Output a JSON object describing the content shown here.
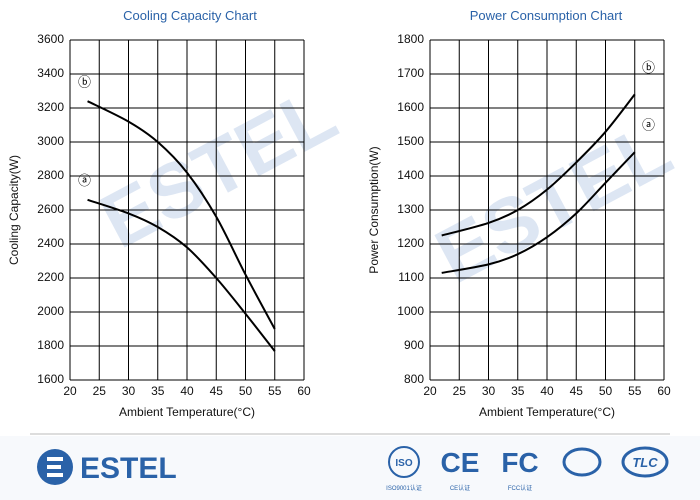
{
  "chart_data": [
    {
      "type": "line",
      "title": "Cooling Capacity Chart",
      "x_label": "Ambient Temperature(°C)",
      "y_label": "Cooling Capacity(W)",
      "x": [
        23,
        30,
        35,
        40,
        45,
        50,
        55
      ],
      "series": [
        {
          "name": "ⓑ",
          "color": "#000000",
          "values": [
            3240,
            3120,
            3000,
            2820,
            2560,
            2220,
            1900
          ]
        },
        {
          "name": "ⓐ",
          "color": "#000000",
          "values": [
            2660,
            2580,
            2500,
            2380,
            2200,
            1990,
            1770
          ]
        }
      ],
      "xlim": [
        20,
        60
      ],
      "xticks": [
        20,
        25,
        30,
        35,
        40,
        45,
        50,
        55,
        60
      ],
      "ylim": [
        1600,
        3600
      ],
      "yticks": [
        1600,
        1800,
        2000,
        2200,
        2400,
        2600,
        2800,
        3000,
        3200,
        3400,
        3600
      ],
      "grid": true,
      "legend": "left"
    },
    {
      "type": "line",
      "title": "Power Consumption Chart",
      "x_label": "Ambient Temperature(°C)",
      "y_label": "Power Consumption(W)",
      "x": [
        22,
        30,
        35,
        40,
        45,
        50,
        55
      ],
      "series": [
        {
          "name": "ⓑ",
          "color": "#000000",
          "values": [
            1225,
            1262,
            1300,
            1360,
            1440,
            1530,
            1640
          ]
        },
        {
          "name": "ⓐ",
          "color": "#000000",
          "values": [
            1115,
            1140,
            1170,
            1220,
            1290,
            1380,
            1470
          ]
        }
      ],
      "xlim": [
        20,
        60
      ],
      "xticks": [
        20,
        25,
        30,
        35,
        40,
        45,
        50,
        55,
        60
      ],
      "ylim": [
        800,
        1800
      ],
      "yticks": [
        800,
        900,
        1000,
        1100,
        1200,
        1300,
        1400,
        1500,
        1600,
        1700,
        1800
      ],
      "grid": true,
      "legend": "right"
    }
  ],
  "watermark": "ESTEL",
  "footer": {
    "brand": "ESTEL",
    "certs": [
      {
        "label": "ISO",
        "caption": "ISO9001认证"
      },
      {
        "label": "CE",
        "caption": "CE认证"
      },
      {
        "label": "FC",
        "caption": "FCC认证"
      },
      {
        "label": "TLC"
      }
    ]
  }
}
